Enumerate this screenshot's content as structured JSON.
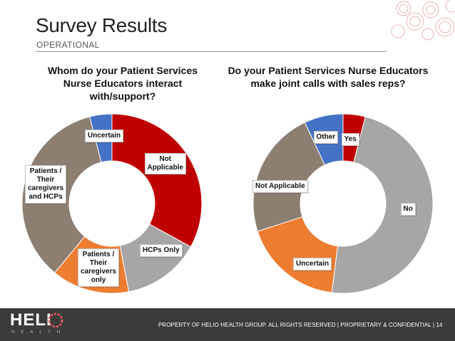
{
  "header": {
    "title": "Survey Results",
    "subtitle": "OPERATIONAL"
  },
  "colors": {
    "red": "#c00000",
    "grey": "#a6a6a6",
    "orange": "#ed7d31",
    "taupe": "#8c7e71",
    "blue": "#4472c4"
  },
  "chart_data": [
    {
      "type": "pie",
      "style": "donut",
      "title": "Whom do your Patient Services Nurse Educators interact with/support?",
      "categories": [
        "Not Applicable",
        "HCPs Only",
        "Patients / Their caregivers only",
        "Patients / Their caregivers and HCPs",
        "Uncertain"
      ],
      "label_lines": [
        [
          "Not",
          "Applicable"
        ],
        [
          "HCPs Only"
        ],
        [
          "Patients /",
          "Their",
          "caregivers",
          "only"
        ],
        [
          "Patients /",
          "Their",
          "caregivers",
          "and HCPs"
        ],
        [
          "Uncertain"
        ]
      ],
      "values": [
        33,
        14,
        14,
        35,
        4
      ],
      "colors": [
        "#c00000",
        "#a6a6a6",
        "#ed7d31",
        "#8c7e71",
        "#4472c4"
      ],
      "legend": "none"
    },
    {
      "type": "pie",
      "style": "donut",
      "title": "Do your Patient Services Nurse Educators make joint calls with sales reps?",
      "categories": [
        "Yes",
        "No",
        "Uncertain",
        "Not Applicable",
        "Other"
      ],
      "label_lines": [
        [
          "Yes"
        ],
        [
          "No"
        ],
        [
          "Uncertain"
        ],
        [
          "Not Applicable"
        ],
        [
          "Other"
        ]
      ],
      "values": [
        4,
        48,
        18,
        23,
        7
      ],
      "colors": [
        "#c00000",
        "#a6a6a6",
        "#ed7d31",
        "#8c7e71",
        "#4472c4"
      ],
      "legend": "none"
    }
  ],
  "footer": {
    "logo_text": "HELI",
    "logo_sub": "HEALTH",
    "notice": "PROPERTY OF HELIO HEALTH GROUP.  ALL RIGHTS RESERVED   |   PROPRIETARY & CONFIDENTIAL    |    14"
  }
}
